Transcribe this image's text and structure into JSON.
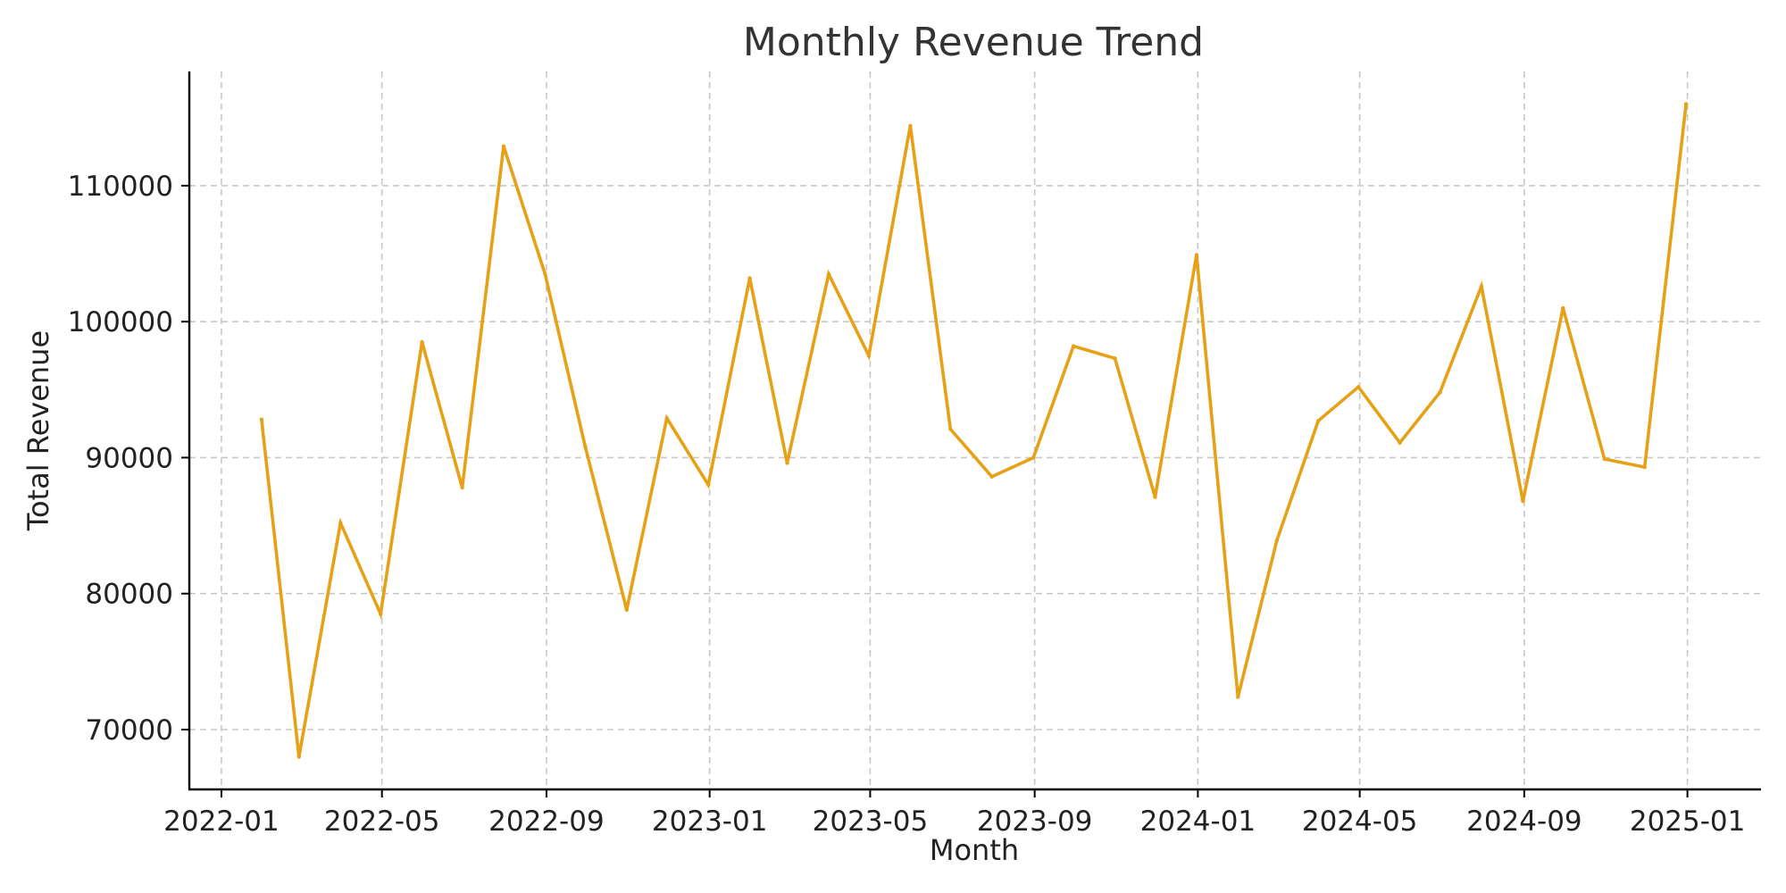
{
  "chart_data": {
    "type": "line",
    "title": "Monthly Revenue Trend",
    "xlabel": "Month",
    "ylabel": "Total Revenue",
    "grid": true,
    "color": "#E6A117",
    "x_ticks": [
      "2022-01",
      "2022-05",
      "2022-09",
      "2023-01",
      "2023-05",
      "2023-09",
      "2024-01",
      "2024-05",
      "2024-09",
      "2025-01"
    ],
    "y_ticks": [
      70000,
      80000,
      90000,
      100000,
      110000
    ],
    "xlim": [
      "2021-12-08",
      "2025-02-25"
    ],
    "ylim": [
      65600,
      118400
    ],
    "series": [
      {
        "x": [
          "2022-01-31",
          "2022-02-28",
          "2022-03-31",
          "2022-04-30",
          "2022-05-31",
          "2022-06-30",
          "2022-07-31",
          "2022-08-31",
          "2022-09-30",
          "2022-10-31",
          "2022-11-30",
          "2022-12-31",
          "2023-01-31",
          "2023-02-28",
          "2023-03-31",
          "2023-04-30",
          "2023-05-31",
          "2023-06-30",
          "2023-07-31",
          "2023-08-31",
          "2023-09-30",
          "2023-10-31",
          "2023-11-30",
          "2023-12-31",
          "2024-01-31",
          "2024-02-29",
          "2024-03-31",
          "2024-04-30",
          "2024-05-31",
          "2024-06-30",
          "2024-07-31",
          "2024-08-31",
          "2024-09-30",
          "2024-10-31",
          "2024-11-30",
          "2024-12-31"
        ],
        "values": [
          92800,
          68000,
          85200,
          78500,
          98500,
          87800,
          112900,
          103500,
          90800,
          78800,
          92900,
          88000,
          103200,
          89600,
          103500,
          97500,
          114400,
          92100,
          88600,
          90000,
          98200,
          97300,
          87100,
          104900,
          72400,
          83900,
          92700,
          95200,
          91100,
          94800,
          102600,
          86800,
          101000,
          89900,
          89300,
          116000
        ]
      }
    ]
  }
}
